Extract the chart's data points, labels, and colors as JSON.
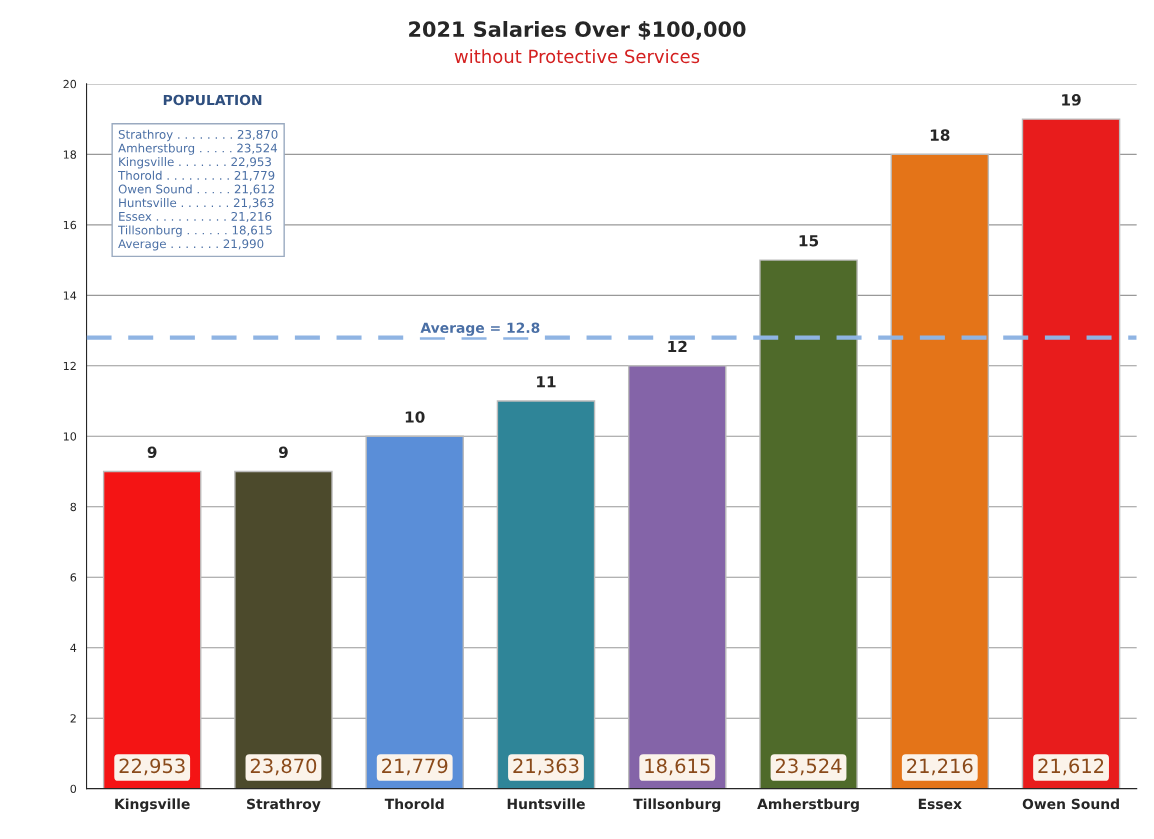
{
  "chart_data": {
    "type": "bar",
    "title": "2021 Salaries Over $100,000",
    "subtitle": "without Protective Services",
    "categories": [
      "Kingsville",
      "Strathroy",
      "Thorold",
      "Huntsville",
      "Tillsonburg",
      "Amherstburg",
      "Essex",
      "Owen Sound"
    ],
    "values": [
      9,
      9,
      10,
      11,
      12,
      15,
      18,
      19
    ],
    "colors": [
      "#f41414",
      "#4c4a2c",
      "#5a8ed8",
      "#2f8598",
      "#8464a8",
      "#4f6a2a",
      "#e47418",
      "#e81c1c"
    ],
    "ylim": [
      0,
      20
    ],
    "yticks": [
      0,
      2,
      4,
      6,
      8,
      10,
      12,
      14,
      16,
      18,
      20
    ],
    "grid": "y",
    "data_labels": true,
    "ref_lines": [
      {
        "axis": "y",
        "value": 12.8,
        "label": "Average = 12.8",
        "color": "#8fb4e3",
        "line_style": "dashed"
      }
    ],
    "annotations": [
      "22,953",
      "23,870",
      "21,779",
      "21,363",
      "18,615",
      "23,524",
      "21,216",
      "21,612",
      "POPULATION",
      "Strathroy . . . . . . . . 23,870",
      "Amherstburg . . . . . 23,524",
      "Kingsville . . . . . . . 22,953",
      "Thorold . . . . . . . . . 21,779",
      "Owen Sound . . . . . 21,612",
      "Huntsville . . . . . . . 21,363",
      "Essex . . . . . . . . . . 21,216",
      "Tillsonburg . . . . . . 18,615",
      "Average . . . . . . . 21,990"
    ]
  }
}
